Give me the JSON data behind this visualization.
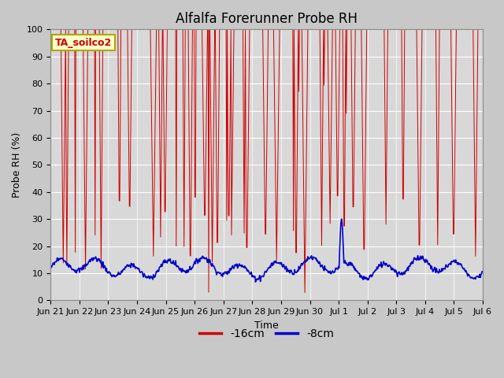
{
  "title": "Alfalfa Forerunner Probe RH",
  "ylabel": "Probe RH (%)",
  "xlabel": "Time",
  "legend_label": "TA_soilco2",
  "series_labels": [
    "-16cm",
    "-8cm"
  ],
  "series_colors": [
    "#cc0000",
    "#0000cc"
  ],
  "ylim": [
    0,
    100
  ],
  "xlim": [
    0,
    15
  ],
  "fig_width": 6.4,
  "fig_height": 4.8,
  "dpi": 100,
  "fig_bg_color": "#c8c8c8",
  "plot_bg_color": "#d8d8d8",
  "grid_color": "#ffffff",
  "title_fontsize": 12,
  "axis_label_fontsize": 9,
  "tick_fontsize": 8,
  "legend_box_facecolor": "#ffffcc",
  "legend_box_edgecolor": "#aaaa00",
  "legend_label_color": "#cc0000",
  "x_tick_positions": [
    0,
    1,
    2,
    3,
    4,
    5,
    6,
    7,
    8,
    9,
    10,
    11,
    12,
    13,
    14,
    15
  ],
  "x_tick_labels": [
    "Jun 21",
    "Jun 22",
    "Jun 23",
    "Jun 24",
    "Jun 25",
    "Jun 26",
    "Jun 27",
    "Jun 28",
    "Jun 29",
    "Jun 30",
    "Jul 1",
    "Jul 2",
    "Jul 3",
    "Jul 4",
    "Jul 5",
    "Jul 6"
  ],
  "y_tick_positions": [
    0,
    10,
    20,
    30,
    40,
    50,
    60,
    70,
    80,
    90,
    100
  ],
  "y_tick_labels": [
    "0",
    "10",
    "20",
    "30",
    "40",
    "50",
    "60",
    "70",
    "80",
    "90",
    "100"
  ]
}
